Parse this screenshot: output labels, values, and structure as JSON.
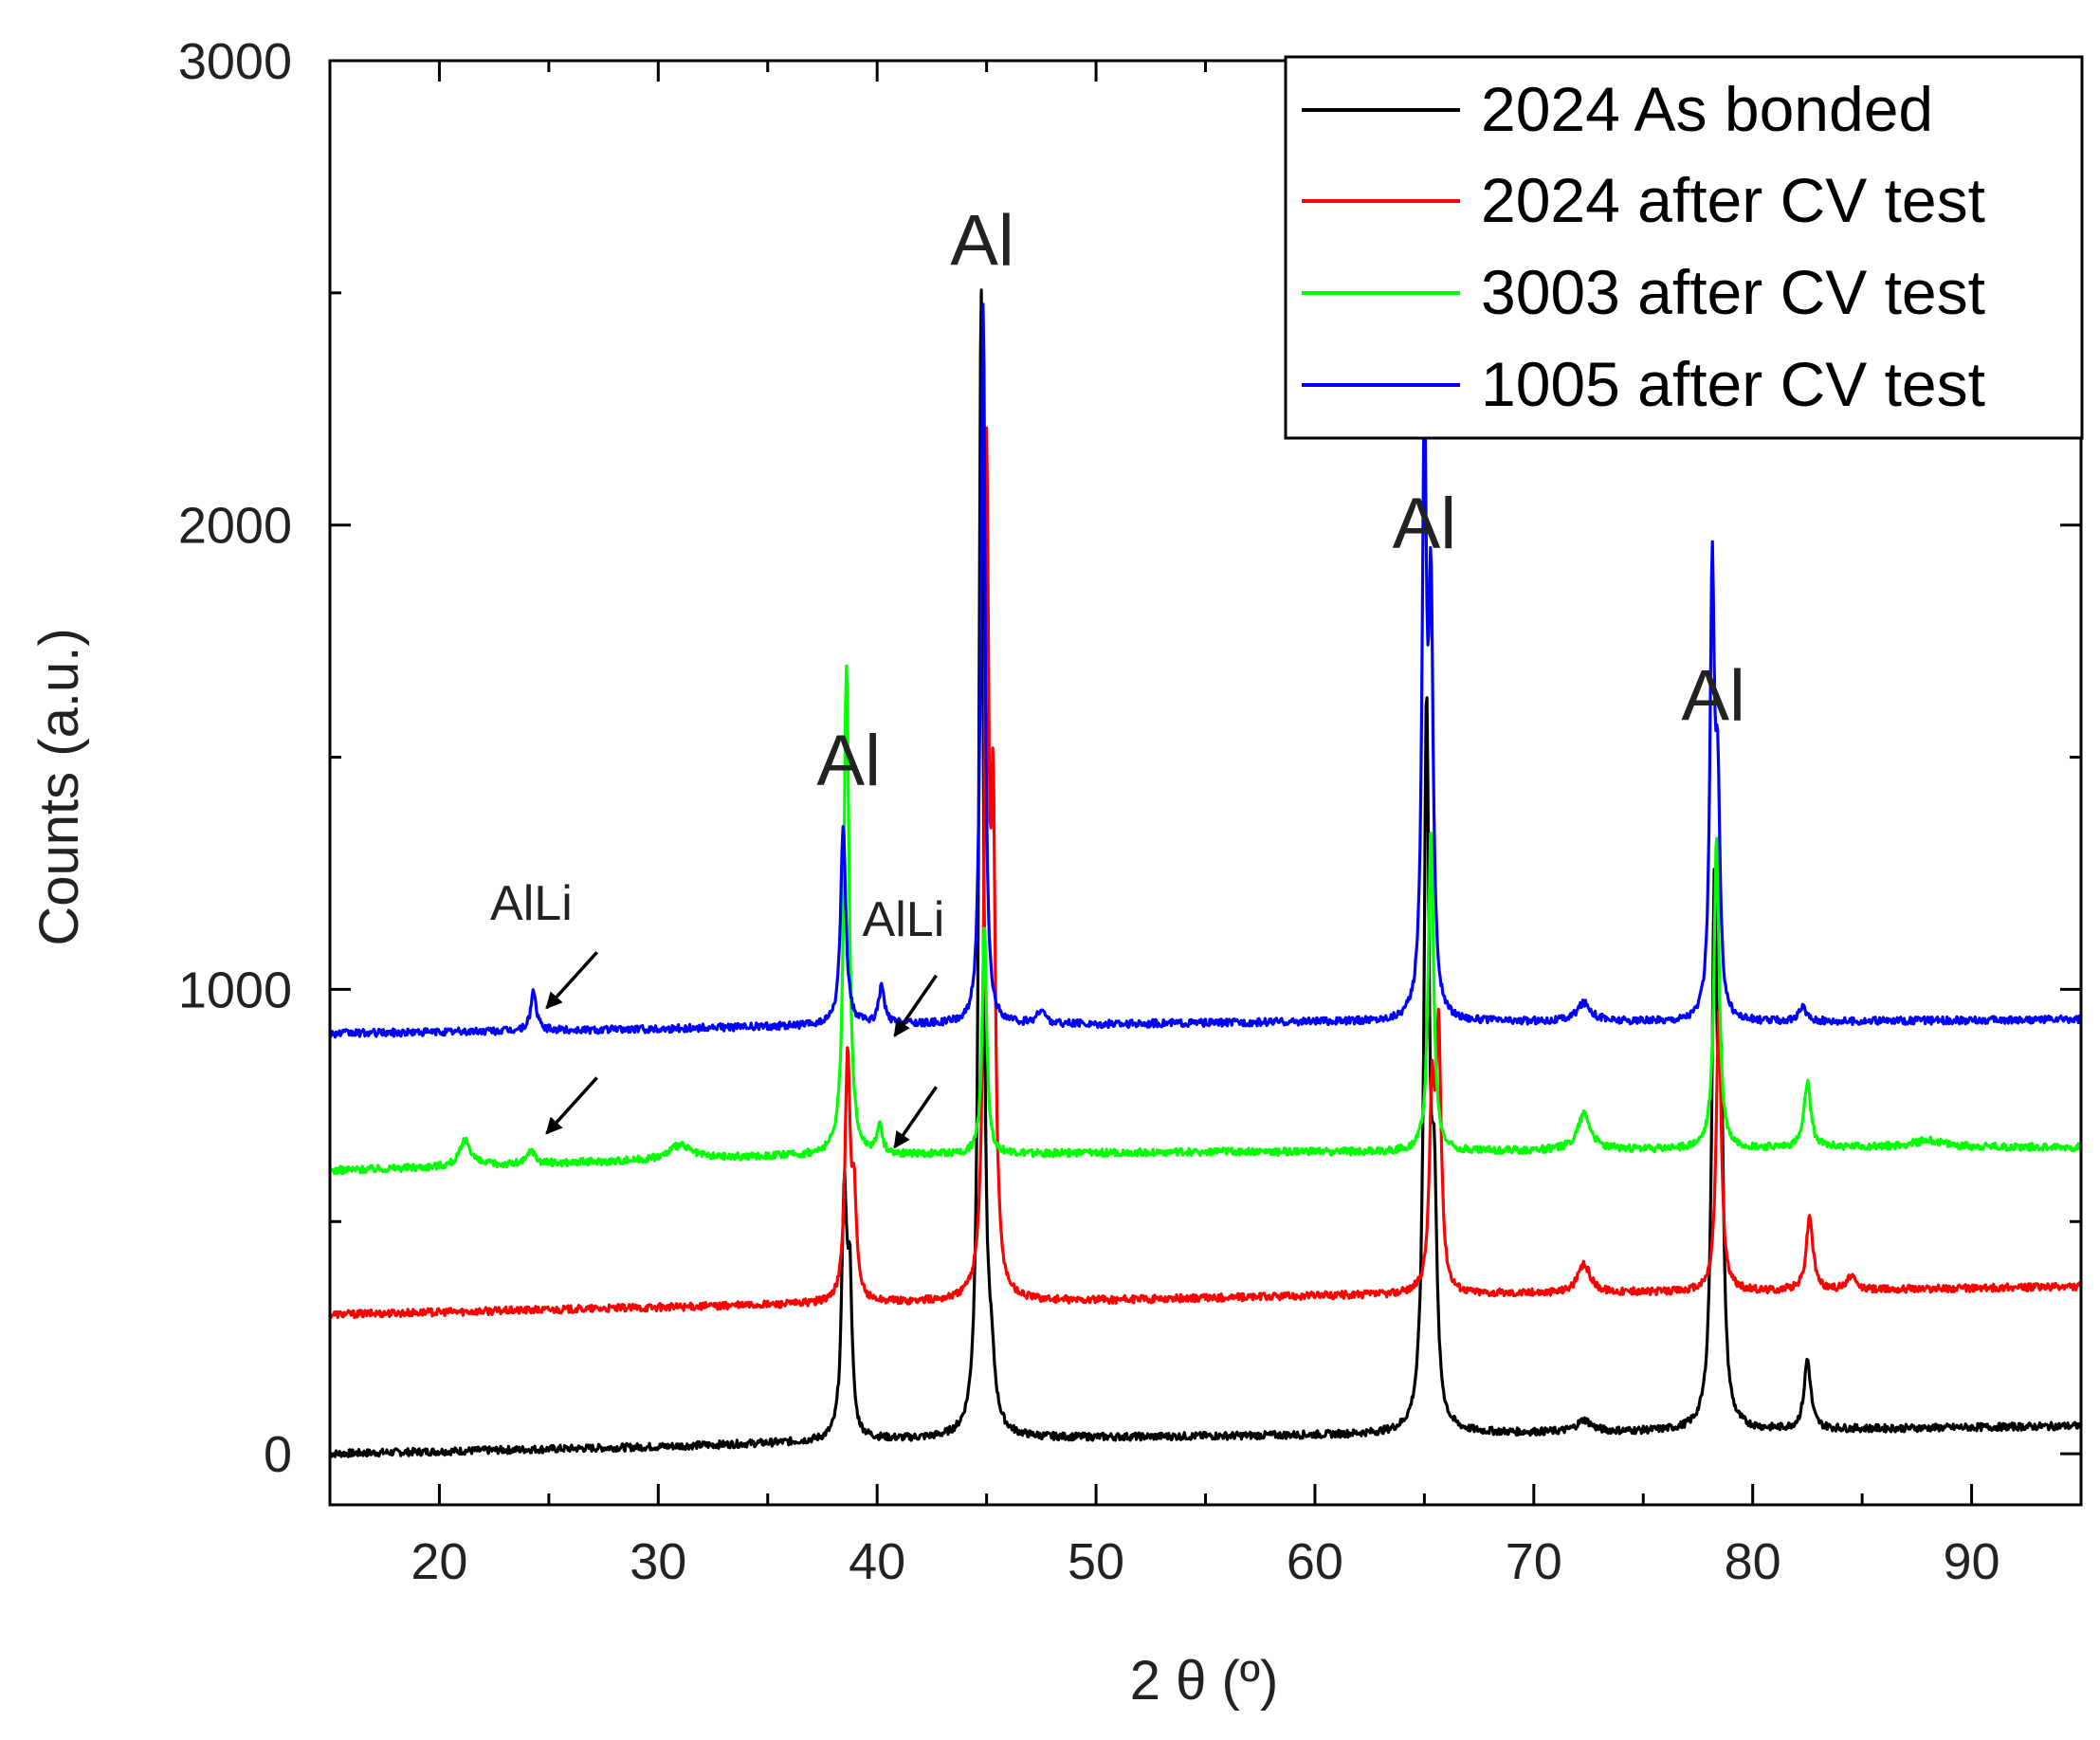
{
  "chart_data": {
    "type": "line",
    "title": "",
    "xlabel": "2 θ (º)",
    "ylabel": "Counts (a.u.)",
    "xlim": [
      15,
      95
    ],
    "ylim": [
      -110,
      3000
    ],
    "x_ticks": [
      20,
      30,
      40,
      50,
      60,
      70,
      80,
      90
    ],
    "x_tick_labels": [
      "20",
      "30",
      "40",
      "50",
      "60",
      "70",
      "80",
      "90"
    ],
    "y_ticks": [
      0,
      1000,
      2000,
      3000
    ],
    "y_tick_labels": [
      "0",
      "1000",
      "2000",
      "3000"
    ],
    "grid": false,
    "legend_position": "top-right",
    "series": [
      {
        "name": "2024 As bonded",
        "color": "#000000",
        "baseline": [
          [
            15,
            0
          ],
          [
            30,
            15
          ],
          [
            40,
            30
          ],
          [
            50,
            35
          ],
          [
            60,
            40
          ],
          [
            70,
            45
          ],
          [
            80,
            50
          ],
          [
            95,
            60
          ]
        ],
        "peaks": [
          [
            38.5,
            520,
            0.14
          ],
          [
            38.75,
            300,
            0.12
          ],
          [
            44.75,
            2470,
            0.12
          ],
          [
            45.2,
            120,
            0.2
          ],
          [
            65.1,
            1550,
            0.14
          ],
          [
            65.45,
            450,
            0.14
          ],
          [
            72.3,
            25,
            0.4
          ],
          [
            78.25,
            1100,
            0.14
          ],
          [
            78.55,
            650,
            0.14
          ],
          [
            82.5,
            150,
            0.18
          ]
        ]
      },
      {
        "name": "2024 after CV test",
        "color": "#ff0000",
        "baseline": [
          [
            15,
            300
          ],
          [
            30,
            315
          ],
          [
            40,
            325
          ],
          [
            50,
            330
          ],
          [
            60,
            340
          ],
          [
            70,
            345
          ],
          [
            80,
            350
          ],
          [
            95,
            360
          ]
        ],
        "peaks": [
          [
            38.65,
            530,
            0.14
          ],
          [
            38.95,
            200,
            0.12
          ],
          [
            45.0,
            1750,
            0.12
          ],
          [
            45.3,
            950,
            0.12
          ],
          [
            65.35,
            400,
            0.14
          ],
          [
            65.65,
            540,
            0.14
          ],
          [
            72.3,
            60,
            0.35
          ],
          [
            78.45,
            600,
            0.14
          ],
          [
            82.6,
            160,
            0.18
          ],
          [
            84.5,
            30,
            0.2
          ]
        ]
      },
      {
        "name": "3003 after CV test",
        "color": "#00ff00",
        "baseline": [
          [
            15,
            610
          ],
          [
            25,
            625
          ],
          [
            35,
            640
          ],
          [
            45,
            645
          ],
          [
            55,
            650
          ],
          [
            65,
            650
          ],
          [
            75,
            655
          ],
          [
            85,
            660
          ],
          [
            95,
            660
          ]
        ],
        "peaks": [
          [
            21.2,
            55,
            0.3
          ],
          [
            24.2,
            30,
            0.2
          ],
          [
            31.0,
            30,
            0.6
          ],
          [
            38.6,
            1060,
            0.14
          ],
          [
            40.1,
            60,
            0.15
          ],
          [
            44.9,
            500,
            0.12
          ],
          [
            65.3,
            700,
            0.14
          ],
          [
            72.3,
            80,
            0.35
          ],
          [
            78.35,
            670,
            0.14
          ],
          [
            82.5,
            140,
            0.18
          ],
          [
            88.0,
            15,
            0.8
          ]
        ]
      },
      {
        "name": "1005 after CV test",
        "color": "#0000ff",
        "baseline": [
          [
            15,
            905
          ],
          [
            30,
            915
          ],
          [
            40,
            925
          ],
          [
            50,
            925
          ],
          [
            60,
            930
          ],
          [
            70,
            930
          ],
          [
            80,
            930
          ],
          [
            95,
            935
          ]
        ],
        "peaks": [
          [
            24.3,
            85,
            0.15
          ],
          [
            38.45,
            430,
            0.14
          ],
          [
            40.2,
            80,
            0.15
          ],
          [
            44.7,
            230,
            0.12
          ],
          [
            44.85,
            1460,
            0.1
          ],
          [
            47.5,
            30,
            0.2
          ],
          [
            65.0,
            1260,
            0.12
          ],
          [
            65.3,
            850,
            0.12
          ],
          [
            72.3,
            40,
            0.4
          ],
          [
            78.15,
            950,
            0.12
          ],
          [
            78.4,
            450,
            0.12
          ],
          [
            82.3,
            30,
            0.2
          ]
        ]
      }
    ],
    "annotations": [
      {
        "text": "Al",
        "x": 38.7,
        "y": 1440,
        "size": "large"
      },
      {
        "text": "Al",
        "x": 44.8,
        "y": 2560,
        "size": "large"
      },
      {
        "text": "Al",
        "x": 65.0,
        "y": 1950,
        "size": "large"
      },
      {
        "text": "Al",
        "x": 78.2,
        "y": 1580,
        "size": "large"
      },
      {
        "text": "AlLi",
        "x": 24.2,
        "y": 1150,
        "size": "small"
      },
      {
        "text": "AlLi",
        "x": 41.2,
        "y": 1115,
        "size": "small"
      }
    ],
    "arrows": [
      {
        "from": [
          27.2,
          1080
        ],
        "to": [
          24.9,
          960
        ]
      },
      {
        "from": [
          42.7,
          1030
        ],
        "to": [
          40.8,
          900
        ]
      },
      {
        "from": [
          27.2,
          810
        ],
        "to": [
          24.9,
          690
        ]
      },
      {
        "from": [
          42.7,
          790
        ],
        "to": [
          40.8,
          660
        ]
      }
    ]
  }
}
